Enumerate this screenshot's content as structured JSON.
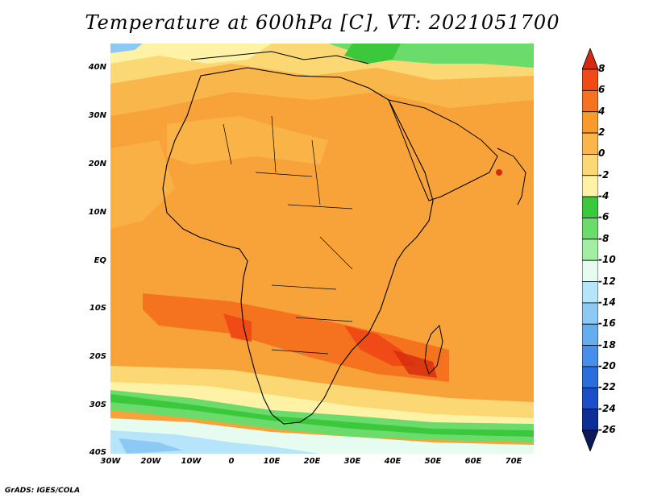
{
  "title": "Temperature at 600hPa [C], VT: 2021051700",
  "footer": "GrADS: IGES/COLA",
  "map": {
    "lat_labels": [
      "40N",
      "30N",
      "20N",
      "10N",
      "EQ",
      "10S",
      "20S",
      "30S",
      "40S"
    ],
    "lon_labels": [
      "30W",
      "20W",
      "10W",
      "0",
      "10E",
      "20E",
      "30E",
      "40E",
      "50E",
      "60E",
      "70E"
    ]
  },
  "colorbar": {
    "labels": [
      "8",
      "6",
      "4",
      "2",
      "0",
      "-2",
      "-4",
      "-6",
      "-8",
      "-10",
      "-12",
      "-14",
      "-16",
      "-18",
      "-20",
      "-22",
      "-24",
      "-26"
    ],
    "colors": [
      "#d42b0e",
      "#f04a16",
      "#f5731e",
      "#f89a2c",
      "#f9b64a",
      "#fbd873",
      "#fdf2a6",
      "#3cc83c",
      "#6bdc6b",
      "#a2eea2",
      "#e6fcf0",
      "#b6e4fa",
      "#8ccaf5",
      "#64aeef",
      "#468feb",
      "#2a6ede",
      "#1a4fc8",
      "#0e2f96",
      "#0a1a5a"
    ]
  }
}
